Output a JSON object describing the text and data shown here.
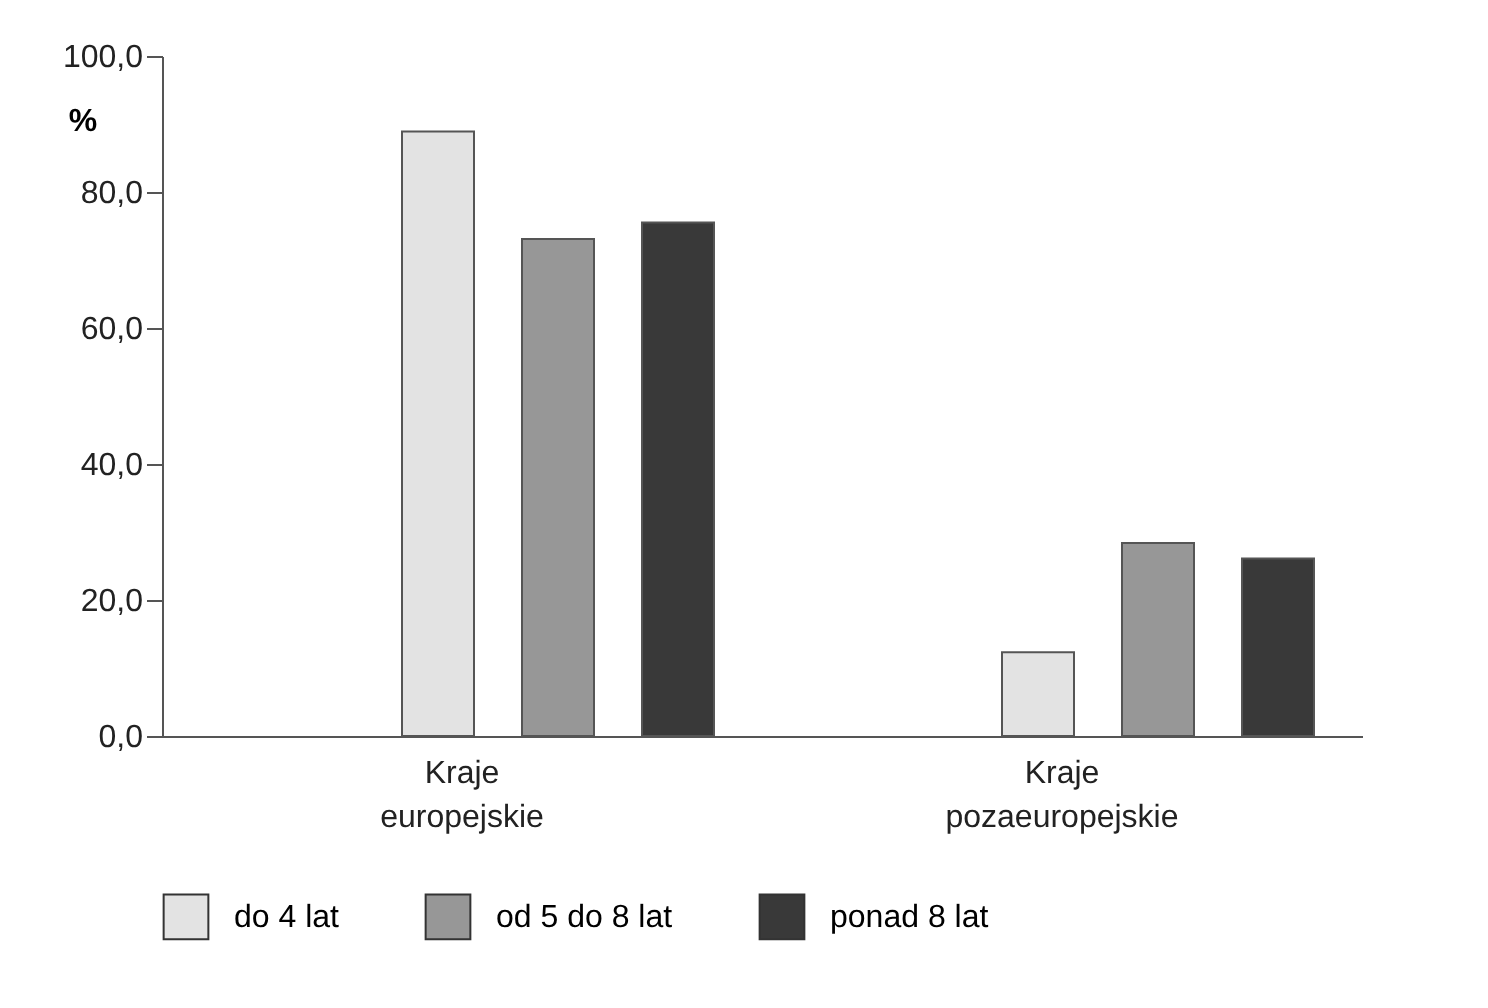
{
  "chart_data": {
    "type": "bar",
    "ylabel": "%",
    "categories": [
      "Kraje europejskie",
      "Kraje pozaeuropejskie"
    ],
    "series": [
      {
        "name": "do 4 lat",
        "color": "#e3e3e3",
        "values": [
          88.9,
          12.3
        ]
      },
      {
        "name": "od 5 do 8 lat",
        "color": "#979797",
        "values": [
          73.1,
          28.4
        ]
      },
      {
        "name": "ponad 8 lat",
        "color": "#393939",
        "values": [
          75.5,
          26.1
        ]
      }
    ],
    "ylim": [
      0,
      100
    ],
    "yticks": [
      {
        "value": 0,
        "label": "0,0"
      },
      {
        "value": 20,
        "label": "20,0"
      },
      {
        "value": 40,
        "label": "40,0"
      },
      {
        "value": 60,
        "label": "60,0"
      },
      {
        "value": 80,
        "label": "80,0"
      },
      {
        "value": 100,
        "label": "100,0"
      }
    ],
    "grid": false,
    "legend": "bottom"
  }
}
